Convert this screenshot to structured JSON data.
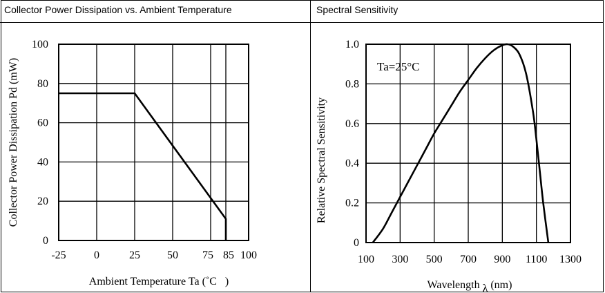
{
  "panels": {
    "left_title": "Collector Power Dissipation vs. Ambient Temperature",
    "right_title": "Spectral Sensitivity"
  },
  "chart_data": [
    {
      "type": "line",
      "title": "Collector Power Dissipation vs. Ambient Temperature",
      "xlabel": "Ambient Temperature Ta (˚C   )",
      "ylabel": "Collector Power Dissipation Pd (mW)",
      "xlim": [
        -25,
        100
      ],
      "ylim": [
        0,
        100
      ],
      "x_ticks": [
        -25,
        0,
        25,
        50,
        75,
        85,
        100
      ],
      "x_tick_labels": [
        "-25",
        "0",
        "25",
        "50",
        "75",
        "85",
        "100"
      ],
      "y_ticks": [
        0,
        20,
        40,
        60,
        80,
        100
      ],
      "y_tick_labels": [
        "0",
        "20",
        "40",
        "60",
        "80",
        "100"
      ],
      "grid": true,
      "series": [
        {
          "name": "Pd",
          "x": [
            -25,
            25,
            85,
            85
          ],
          "y": [
            75,
            75,
            11,
            0
          ]
        }
      ]
    },
    {
      "type": "line",
      "title": "Spectral Sensitivity",
      "annotation": "Ta=25°C",
      "xlabel": "Wavelength λ (nm)",
      "xlabel_main": "Wavelength",
      "xlabel_symbol": "λ",
      "xlabel_unit": "(nm)",
      "ylabel": "Relative Spectral Sensitivity",
      "xlim": [
        100,
        1300
      ],
      "ylim": [
        0,
        1.0
      ],
      "x_ticks": [
        100,
        300,
        500,
        700,
        900,
        1100,
        1300
      ],
      "x_tick_labels": [
        "100",
        "300",
        "500",
        "700",
        "900",
        "1100",
        "1300"
      ],
      "y_ticks": [
        0,
        0.2,
        0.4,
        0.6,
        0.8,
        1.0
      ],
      "y_tick_labels": [
        "0",
        "0.2",
        "0.4",
        "0.6",
        "0.8",
        "1.0"
      ],
      "grid": true,
      "series": [
        {
          "name": "Relative sensitivity",
          "x": [
            140,
            200,
            250,
            300,
            350,
            400,
            450,
            500,
            550,
            600,
            650,
            700,
            750,
            800,
            850,
            900,
            930,
            960,
            1000,
            1040,
            1080,
            1100,
            1120,
            1140,
            1170
          ],
          "y": [
            0.0,
            0.07,
            0.15,
            0.23,
            0.31,
            0.39,
            0.47,
            0.55,
            0.62,
            0.69,
            0.76,
            0.82,
            0.88,
            0.93,
            0.97,
            0.995,
            1.0,
            0.99,
            0.95,
            0.85,
            0.66,
            0.52,
            0.36,
            0.2,
            0.0
          ]
        }
      ]
    }
  ]
}
